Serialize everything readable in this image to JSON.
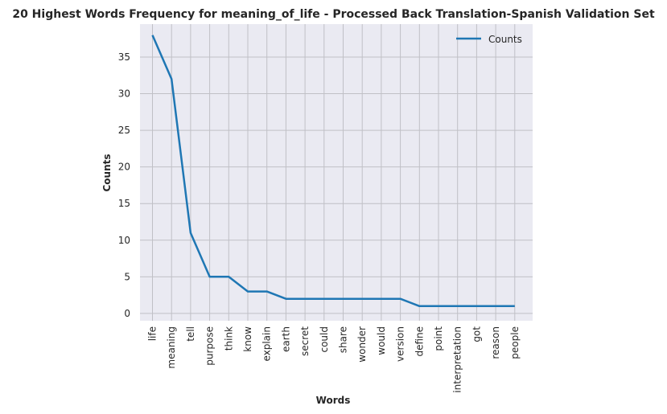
{
  "chart_data": {
    "type": "line",
    "title": "20 Highest Words Frequency for meaning_of_life - Processed Back Translation-Spanish Validation Set",
    "xlabel": "Words",
    "ylabel": "Counts",
    "categories": [
      "life",
      "meaning",
      "tell",
      "purpose",
      "think",
      "know",
      "explain",
      "earth",
      "secret",
      "could",
      "share",
      "wonder",
      "would",
      "version",
      "define",
      "point",
      "interpretation",
      "got",
      "reason",
      "people"
    ],
    "series": [
      {
        "name": "Counts",
        "values": [
          38,
          32,
          11,
          5,
          5,
          3,
          3,
          2,
          2,
          2,
          2,
          2,
          2,
          2,
          1,
          1,
          1,
          1,
          1,
          1
        ]
      }
    ],
    "yticks": [
      0,
      5,
      10,
      15,
      20,
      25,
      30,
      35
    ],
    "ylim": [
      -1,
      39.5
    ],
    "grid": true,
    "legend": "top-right",
    "colors": {
      "line": "#1f77b4",
      "background": "#eaeaf2",
      "grid": "#c0c0c6"
    }
  }
}
